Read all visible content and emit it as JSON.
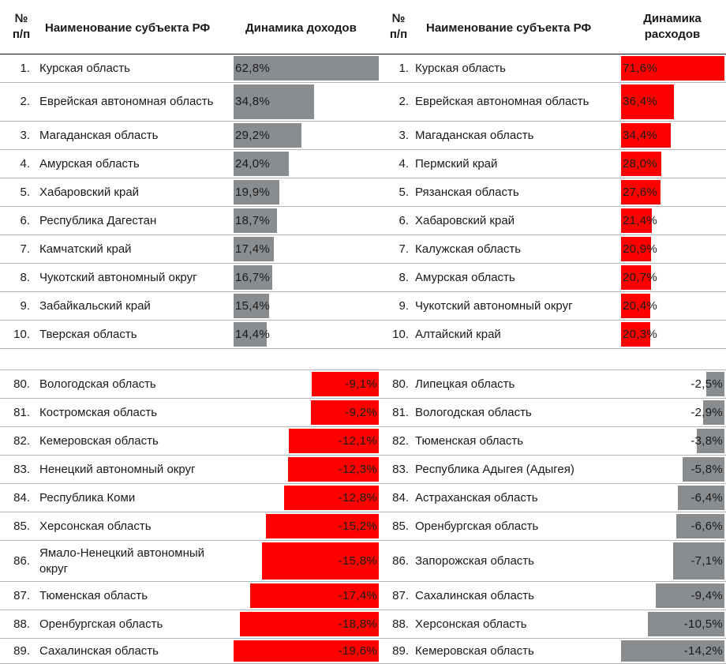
{
  "colors": {
    "income_positive": "#8a8d90",
    "income_negative": "#ff0000",
    "expense_positive": "#ff0000",
    "expense_negative": "#8a8d90"
  },
  "header": {
    "num_left": "№",
    "num_left_2": "п/п",
    "name_left": "Наименование субъекта РФ",
    "income": "Динамика доходов",
    "num_right": "№",
    "num_right_2": "п/п",
    "name_right": "Наименование субъекта РФ",
    "expense": "Динамика",
    "expense_2": "расходов"
  },
  "chart_data": {
    "type": "table",
    "columns": [
      "№ п/п",
      "Наименование субъекта РФ",
      "Динамика доходов",
      "№ п/п",
      "Наименование субъекта РФ",
      "Динамика расходов"
    ],
    "income": {
      "top": [
        {
          "rank": "1.",
          "region": "Курская область",
          "label": "62,8%",
          "value": 62.8
        },
        {
          "rank": "2.",
          "region": "Еврейская автономная область",
          "label": "34,8%",
          "value": 34.8
        },
        {
          "rank": "3.",
          "region": "Магаданская область",
          "label": "29,2%",
          "value": 29.2
        },
        {
          "rank": "4.",
          "region": "Амурская область",
          "label": "24,0%",
          "value": 24.0
        },
        {
          "rank": "5.",
          "region": "Хабаровский край",
          "label": "19,9%",
          "value": 19.9
        },
        {
          "rank": "6.",
          "region": "Республика Дагестан",
          "label": "18,7%",
          "value": 18.7
        },
        {
          "rank": "7.",
          "region": "Камчатский край",
          "label": "17,4%",
          "value": 17.4
        },
        {
          "rank": "8.",
          "region": "Чукотский автономный округ",
          "label": "16,7%",
          "value": 16.7
        },
        {
          "rank": "9.",
          "region": "Забайкальский край",
          "label": "15,4%",
          "value": 15.4
        },
        {
          "rank": "10.",
          "region": "Тверская область",
          "label": "14,4%",
          "value": 14.4
        }
      ],
      "bottom": [
        {
          "rank": "80.",
          "region": "Вологодская область",
          "label": "-9,1%",
          "value": -9.1
        },
        {
          "rank": "81.",
          "region": "Костромская область",
          "label": "-9,2%",
          "value": -9.2
        },
        {
          "rank": "82.",
          "region": "Кемеровская область",
          "label": "-12,1%",
          "value": -12.1
        },
        {
          "rank": "83.",
          "region": "Ненецкий автономный округ",
          "label": "-12,3%",
          "value": -12.3
        },
        {
          "rank": "84.",
          "region": "Республика Коми",
          "label": "-12,8%",
          "value": -12.8
        },
        {
          "rank": "85.",
          "region": "Херсонская область",
          "label": "-15,2%",
          "value": -15.2
        },
        {
          "rank": "86.",
          "region": "Ямало-Ненецкий автономный округ",
          "label": "-15,8%",
          "value": -15.8
        },
        {
          "rank": "87.",
          "region": "Тюменская область",
          "label": "-17,4%",
          "value": -17.4
        },
        {
          "rank": "88.",
          "region": "Оренбургская область",
          "label": "-18,8%",
          "value": -18.8
        },
        {
          "rank": "89.",
          "region": "Сахалинская область",
          "label": "-19,6%",
          "value": -19.6
        }
      ]
    },
    "expense": {
      "top": [
        {
          "rank": "1.",
          "region": "Курская область",
          "label": "71,6%",
          "value": 71.6
        },
        {
          "rank": "2.",
          "region": "Еврейская автономная область",
          "label": "36,4%",
          "value": 36.4
        },
        {
          "rank": "3.",
          "region": "Магаданская область",
          "label": "34,4%",
          "value": 34.4
        },
        {
          "rank": "4.",
          "region": "Пермский край",
          "label": "28,0%",
          "value": 28.0
        },
        {
          "rank": "5.",
          "region": "Рязанская область",
          "label": "27,6%",
          "value": 27.6
        },
        {
          "rank": "6.",
          "region": "Хабаровский край",
          "label": "21,4%",
          "value": 21.4
        },
        {
          "rank": "7.",
          "region": "Калужская область",
          "label": "20,9%",
          "value": 20.9
        },
        {
          "rank": "8.",
          "region": "Амурская область",
          "label": "20,7%",
          "value": 20.7
        },
        {
          "rank": "9.",
          "region": "Чукотский автономный округ",
          "label": "20,4%",
          "value": 20.4
        },
        {
          "rank": "10.",
          "region": "Алтайский край",
          "label": "20,3%",
          "value": 20.3
        }
      ],
      "bottom": [
        {
          "rank": "80.",
          "region": "Липецкая область",
          "label": "-2,5%",
          "value": -2.5
        },
        {
          "rank": "81.",
          "region": "Вологодская область",
          "label": "-2,9%",
          "value": -2.9
        },
        {
          "rank": "82.",
          "region": "Тюменская область",
          "label": "-3,8%",
          "value": -3.8
        },
        {
          "rank": "83.",
          "region": "Республика Адыгея (Адыгея)",
          "label": "-5,8%",
          "value": -5.8
        },
        {
          "rank": "84.",
          "region": "Астраханская область",
          "label": "-6,4%",
          "value": -6.4
        },
        {
          "rank": "85.",
          "region": "Оренбургская область",
          "label": "-6,6%",
          "value": -6.6
        },
        {
          "rank": "86.",
          "region": "Запорожская область",
          "label": "-7,1%",
          "value": -7.1
        },
        {
          "rank": "87.",
          "region": "Сахалинская область",
          "label": "-9,4%",
          "value": -9.4
        },
        {
          "rank": "88.",
          "region": "Херсонская область",
          "label": "-10,5%",
          "value": -10.5
        },
        {
          "rank": "89.",
          "region": "Кемеровская область",
          "label": "-14,2%",
          "value": -14.2
        }
      ]
    }
  }
}
